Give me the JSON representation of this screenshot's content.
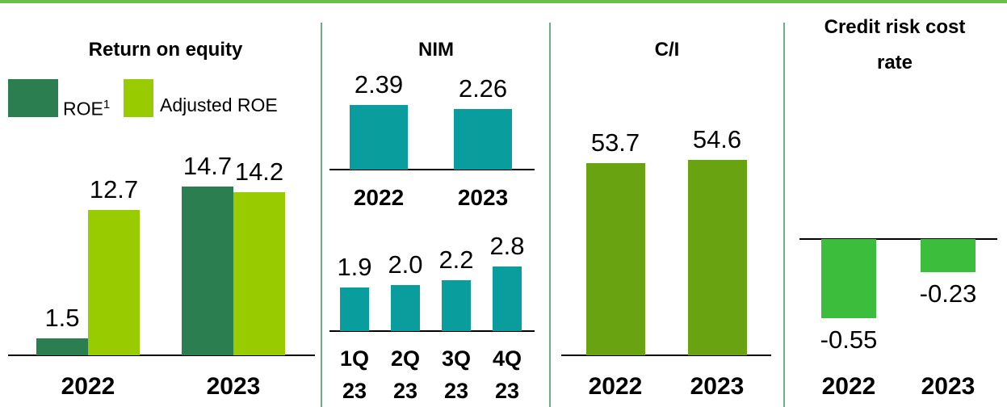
{
  "chart_data": [
    {
      "type": "bar",
      "title": "Return on equity",
      "categories": [
        "2022",
        "2023"
      ],
      "series": [
        {
          "name": "ROE",
          "name_superscript": "1",
          "color": "#2a7e50",
          "values": [
            1.5,
            14.7
          ]
        },
        {
          "name": "Adjusted ROE",
          "color": "#99cc00",
          "values": [
            12.7,
            14.2
          ]
        }
      ]
    },
    {
      "type": "bar",
      "title": "NIM",
      "categories": [
        "2022",
        "2023"
      ],
      "values": [
        2.39,
        2.26
      ],
      "color": "#0a9d9d"
    },
    {
      "type": "bar",
      "categories": [
        "1Q 23",
        "2Q 23",
        "3Q 23",
        "4Q 23"
      ],
      "values": [
        1.9,
        2.0,
        2.2,
        2.8
      ],
      "value_labels": [
        "1.9",
        "2.0",
        "2.2",
        "2.8"
      ],
      "color": "#0a9d9d"
    },
    {
      "type": "bar",
      "title": "C/I",
      "categories": [
        "2022",
        "2023"
      ],
      "values": [
        53.7,
        54.6
      ],
      "color": "#6aa312"
    },
    {
      "type": "bar",
      "title": "Credit risk cost rate",
      "categories": [
        "2022",
        "2023"
      ],
      "values": [
        -0.55,
        -0.23
      ],
      "color": "#3cbd3c"
    }
  ]
}
